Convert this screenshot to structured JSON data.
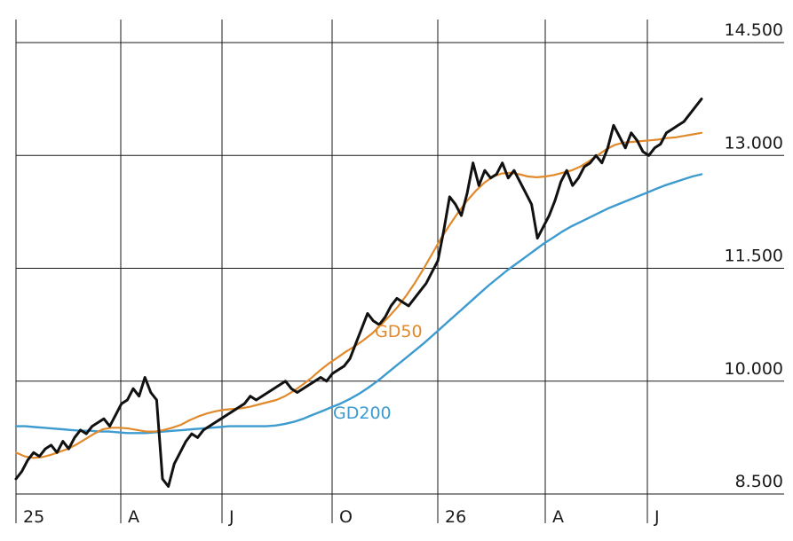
{
  "chart_data": {
    "type": "line",
    "y_ticks": [
      8500,
      10000,
      11500,
      13000,
      14500
    ],
    "y_tick_labels": [
      "8.500",
      "10.000",
      "11.500",
      "13.000",
      "14.500"
    ],
    "ylim": [
      8500,
      14500
    ],
    "x_ticks": [
      "25",
      "A",
      "J",
      "O",
      "26",
      "A",
      "J"
    ],
    "grid": true,
    "colors": {
      "price": "#111111",
      "gd50": "#e08a2c",
      "gd200": "#3d9bd0"
    },
    "series": [
      {
        "key": "price",
        "values": [
          8700,
          8800,
          8950,
          9050,
          9000,
          9100,
          9150,
          9050,
          9200,
          9100,
          9250,
          9350,
          9300,
          9400,
          9450,
          9500,
          9400,
          9550,
          9700,
          9750,
          9900,
          9800,
          10050,
          9850,
          9750,
          8700,
          8600,
          8900,
          9050,
          9200,
          9300,
          9250,
          9350,
          9400,
          9450,
          9500,
          9550,
          9600,
          9650,
          9700,
          9800,
          9750,
          9800,
          9850,
          9900,
          9950,
          10000,
          9900,
          9850,
          9900,
          9950,
          10000,
          10050,
          10000,
          10100,
          10150,
          10200,
          10300,
          10500,
          10700,
          10900,
          10800,
          10750,
          10850,
          11000,
          11100,
          11050,
          11000,
          11100,
          11200,
          11300,
          11450,
          11600,
          12000,
          12450,
          12350,
          12200,
          12500,
          12900,
          12600,
          12800,
          12700,
          12750,
          12900,
          12700,
          12800,
          12650,
          12500,
          12350,
          11900,
          12050,
          12200,
          12400,
          12650,
          12800,
          12600,
          12700,
          12850,
          12900,
          13000,
          12900,
          13100,
          13400,
          13250,
          13100,
          13300,
          13200,
          13050,
          13000,
          13100,
          13150,
          13300,
          13350,
          13400,
          13450,
          13550,
          13650,
          13750
        ]
      },
      {
        "key": "gd50",
        "label": "GD50",
        "values": [
          9050,
          9000,
          8980,
          8990,
          9020,
          9060,
          9100,
          9160,
          9230,
          9300,
          9360,
          9380,
          9380,
          9370,
          9350,
          9330,
          9330,
          9350,
          9380,
          9420,
          9480,
          9530,
          9570,
          9600,
          9620,
          9630,
          9640,
          9660,
          9690,
          9720,
          9750,
          9800,
          9870,
          9950,
          10040,
          10140,
          10230,
          10310,
          10390,
          10460,
          10540,
          10630,
          10740,
          10860,
          10990,
          11140,
          11310,
          11500,
          11700,
          11900,
          12080,
          12250,
          12400,
          12530,
          12640,
          12720,
          12760,
          12770,
          12750,
          12720,
          12710,
          12720,
          12740,
          12770,
          12800,
          12850,
          12920,
          13000,
          13080,
          13140,
          13170,
          13180,
          13190,
          13200,
          13210,
          13230,
          13240,
          13260,
          13280,
          13300
        ]
      },
      {
        "key": "gd200",
        "label": "GD200",
        "values": [
          9400,
          9400,
          9390,
          9380,
          9370,
          9360,
          9350,
          9340,
          9340,
          9330,
          9330,
          9320,
          9310,
          9310,
          9310,
          9320,
          9330,
          9340,
          9350,
          9360,
          9370,
          9380,
          9390,
          9400,
          9400,
          9400,
          9400,
          9400,
          9410,
          9430,
          9460,
          9500,
          9550,
          9600,
          9650,
          9700,
          9760,
          9830,
          9910,
          10000,
          10100,
          10200,
          10300,
          10400,
          10500,
          10610,
          10720,
          10830,
          10940,
          11050,
          11160,
          11270,
          11370,
          11470,
          11560,
          11650,
          11740,
          11830,
          11910,
          11990,
          12060,
          12120,
          12180,
          12240,
          12300,
          12350,
          12400,
          12450,
          12500,
          12550,
          12600,
          12640,
          12680,
          12720,
          12750
        ]
      }
    ]
  }
}
